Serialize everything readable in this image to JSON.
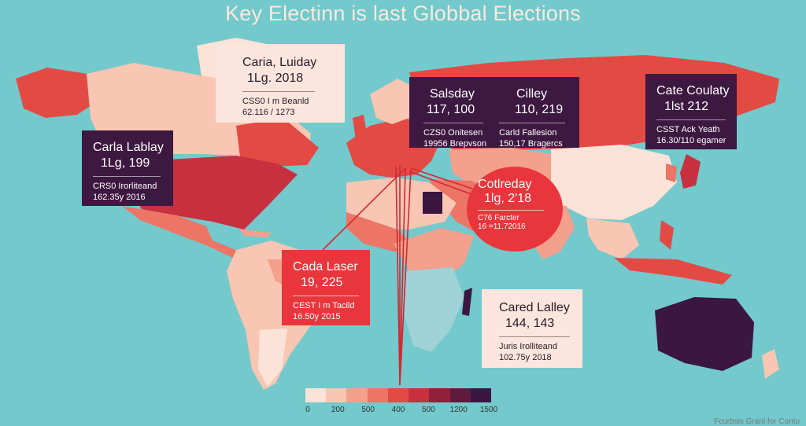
{
  "title": "Key Electinn is last Globbal Elections",
  "colors": {
    "ocean": "#73c9cc",
    "dark": "#3d1840",
    "red": "#e8363c",
    "cream": "#fbe5dc"
  },
  "cards": [
    {
      "id": "c1",
      "name": "Caria, Luiday",
      "value": "1Lg. 2018",
      "line1": "CSS0 I m Beanld",
      "line2": "62.116 / 1273"
    },
    {
      "id": "c2",
      "name": "Carla Lablay",
      "value": "1Lg, 199",
      "line1": "CRS0 Irorliteand",
      "line2": "162.35y 2016"
    },
    {
      "id": "c3",
      "name": "Salsday",
      "value": "117, 100",
      "line1": "CZS0 Onitesen",
      "line2": "19956 Brepvson"
    },
    {
      "id": "c4",
      "name": "Cilley",
      "value": "110, 219",
      "line1": "Carld Fallesion",
      "line2": "150,17 Bragercs"
    },
    {
      "id": "c5",
      "name": "Cate Coulaty",
      "value": "1lst 212",
      "line1": "CSST Ack Yeath",
      "line2": "16.30/110 egamer"
    },
    {
      "id": "c6",
      "name": "Cotlreday",
      "value": "1lg, 2'18",
      "line1": "C76 Farcter",
      "line2": "16 =11.72016"
    },
    {
      "id": "c7",
      "name": "Cada Laser",
      "value": "19, 225",
      "line1": "CEST I m Tacild",
      "line2": "16.50y 2015"
    },
    {
      "id": "c8",
      "name": "Cared Lalley",
      "value": "144, 143",
      "line1": "Juris Irolliteand",
      "line2": "102.75y 2018"
    }
  ],
  "legend": {
    "colors": [
      "#fbe3d8",
      "#f8c6b2",
      "#f3a08c",
      "#ec7565",
      "#e34a44",
      "#c83040",
      "#92203c",
      "#5e1b3d",
      "#3a1640"
    ],
    "ticks": [
      "0",
      "200",
      "500",
      "400",
      "500",
      "1200",
      "1500"
    ]
  },
  "source": "Fcurbsis Granl for Contu"
}
